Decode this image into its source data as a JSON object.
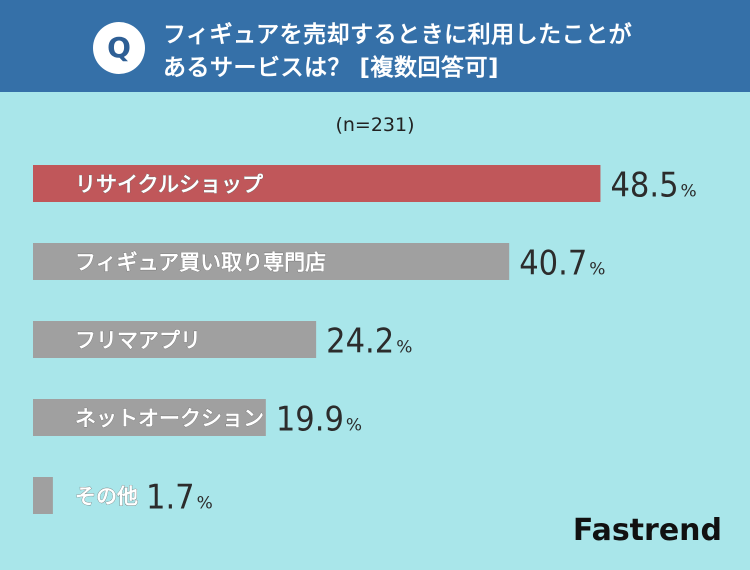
{
  "header": {
    "badge": "Q",
    "question_line1": "フィギュアを売却するときに利用したことが",
    "question_line2": "あるサービスは？ [複数回答可]"
  },
  "sample_size": "(n=231)",
  "chart_data": {
    "type": "bar",
    "orientation": "horizontal",
    "categories": [
      "リサイクルショップ",
      "フィギュア買い取り専門店",
      "フリマアプリ",
      "ネットオークション",
      "その他"
    ],
    "values": [
      48.5,
      40.7,
      24.2,
      19.9,
      1.7
    ],
    "unit": "%",
    "highlight_index": 0
  },
  "colors": {
    "background": "#a9e6ea",
    "header": "#3570a8",
    "bar_highlight": "#c0575a",
    "bar_default": "#a0a0a0",
    "text_dark": "#2c2c2c"
  },
  "brand": "Fastrend"
}
